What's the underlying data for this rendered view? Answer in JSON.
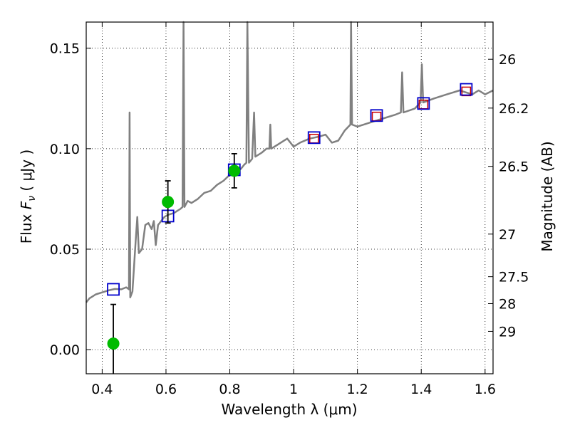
{
  "chart_data": {
    "type": "scatter",
    "xlabel": "Wavelength  λ (μm)",
    "ylabel": "Flux  F_ν  ( μJy )",
    "ylabel_parts": {
      "prefix": "Flux  ",
      "symbol": "F",
      "subscript": "ν",
      "suffix": "  ( μJy )"
    },
    "y2label": "Magnitude (AB)",
    "xlim": [
      0.35,
      1.625
    ],
    "ylim": [
      -0.012,
      0.163
    ],
    "grid": true,
    "x_ticks": [
      {
        "value": 0.4,
        "label": "0.4"
      },
      {
        "value": 0.6,
        "label": "0.6"
      },
      {
        "value": 0.8,
        "label": "0.8"
      },
      {
        "value": 1.0,
        "label": "1"
      },
      {
        "value": 1.2,
        "label": "1.2"
      },
      {
        "value": 1.4,
        "label": "1.4"
      },
      {
        "value": 1.6,
        "label": "1.6"
      }
    ],
    "y_ticks": [
      {
        "value": 0.0,
        "label": "0.00"
      },
      {
        "value": 0.05,
        "label": "0.05"
      },
      {
        "value": 0.1,
        "label": "0.10"
      },
      {
        "value": 0.15,
        "label": "0.15"
      }
    ],
    "y2_ticks": [
      {
        "label": "26",
        "flux": 0.1445
      },
      {
        "label": "26.2",
        "flux": 0.1202
      },
      {
        "label": "26.5",
        "flux": 0.0912
      },
      {
        "label": "27",
        "flux": 0.0575
      },
      {
        "label": "27.5",
        "flux": 0.0363
      },
      {
        "label": "28",
        "flux": 0.0229
      },
      {
        "label": "29",
        "flux": 0.0091
      }
    ],
    "model_spectrum": {
      "color": "#808080",
      "points": [
        [
          0.35,
          0.0235
        ],
        [
          0.355,
          0.0245
        ],
        [
          0.36,
          0.0255
        ],
        [
          0.37,
          0.0265
        ],
        [
          0.38,
          0.0275
        ],
        [
          0.4,
          0.0285
        ],
        [
          0.42,
          0.0295
        ],
        [
          0.44,
          0.0302
        ],
        [
          0.46,
          0.03
        ],
        [
          0.475,
          0.031
        ],
        [
          0.48,
          0.0305
        ],
        [
          0.484,
          0.03
        ],
        [
          0.486,
          0.118
        ],
        [
          0.488,
          0.026
        ],
        [
          0.495,
          0.029
        ],
        [
          0.505,
          0.054
        ],
        [
          0.51,
          0.066
        ],
        [
          0.515,
          0.048
        ],
        [
          0.525,
          0.05
        ],
        [
          0.535,
          0.062
        ],
        [
          0.545,
          0.063
        ],
        [
          0.555,
          0.06
        ],
        [
          0.562,
          0.064
        ],
        [
          0.568,
          0.052
        ],
        [
          0.575,
          0.062
        ],
        [
          0.585,
          0.064
        ],
        [
          0.595,
          0.066
        ],
        [
          0.605,
          0.067
        ],
        [
          0.615,
          0.0675
        ],
        [
          0.625,
          0.068
        ],
        [
          0.635,
          0.069
        ],
        [
          0.645,
          0.07
        ],
        [
          0.652,
          0.071
        ],
        [
          0.655,
          0.163
        ],
        [
          0.658,
          0.071
        ],
        [
          0.668,
          0.074
        ],
        [
          0.68,
          0.073
        ],
        [
          0.7,
          0.075
        ],
        [
          0.72,
          0.078
        ],
        [
          0.74,
          0.079
        ],
        [
          0.76,
          0.082
        ],
        [
          0.78,
          0.084
        ],
        [
          0.8,
          0.087
        ],
        [
          0.82,
          0.088
        ],
        [
          0.835,
          0.09
        ],
        [
          0.845,
          0.092
        ],
        [
          0.852,
          0.093
        ],
        [
          0.855,
          0.163
        ],
        [
          0.86,
          0.093
        ],
        [
          0.87,
          0.095
        ],
        [
          0.876,
          0.118
        ],
        [
          0.88,
          0.096
        ],
        [
          0.9,
          0.098
        ],
        [
          0.915,
          0.1
        ],
        [
          0.924,
          0.1
        ],
        [
          0.927,
          0.112
        ],
        [
          0.93,
          0.1
        ],
        [
          0.95,
          0.102
        ],
        [
          0.98,
          0.105
        ],
        [
          1.0,
          0.101
        ],
        [
          1.02,
          0.103
        ],
        [
          1.05,
          0.105
        ],
        [
          1.08,
          0.106
        ],
        [
          1.1,
          0.107
        ],
        [
          1.12,
          0.103
        ],
        [
          1.14,
          0.104
        ],
        [
          1.16,
          0.109
        ],
        [
          1.178,
          0.112
        ],
        [
          1.18,
          0.163
        ],
        [
          1.183,
          0.112
        ],
        [
          1.2,
          0.111
        ],
        [
          1.24,
          0.113
        ],
        [
          1.28,
          0.115
        ],
        [
          1.32,
          0.117
        ],
        [
          1.336,
          0.118
        ],
        [
          1.34,
          0.138
        ],
        [
          1.344,
          0.118
        ],
        [
          1.38,
          0.12
        ],
        [
          1.398,
          0.123
        ],
        [
          1.402,
          0.142
        ],
        [
          1.406,
          0.123
        ],
        [
          1.44,
          0.125
        ],
        [
          1.48,
          0.127
        ],
        [
          1.52,
          0.129
        ],
        [
          1.56,
          0.127
        ],
        [
          1.58,
          0.129
        ],
        [
          1.6,
          0.127
        ],
        [
          1.625,
          0.129
        ]
      ]
    },
    "model_photometry_blue": {
      "color": "#0000cc",
      "points": [
        [
          0.435,
          0.03
        ],
        [
          0.606,
          0.0665
        ],
        [
          0.814,
          0.0895
        ],
        [
          1.064,
          0.1055
        ],
        [
          1.26,
          0.1165
        ],
        [
          1.407,
          0.1225
        ],
        [
          1.541,
          0.1295
        ]
      ]
    },
    "model_photometry_red": {
      "color": "#cc0000",
      "points": [
        [
          1.064,
          0.105
        ],
        [
          1.26,
          0.116
        ],
        [
          1.407,
          0.122
        ],
        [
          1.541,
          0.1285
        ]
      ]
    },
    "observed_photometry": {
      "color": "#00bb00",
      "points": [
        {
          "x": 0.435,
          "y": 0.003,
          "yerr": 0.0195
        },
        {
          "x": 0.606,
          "y": 0.0735,
          "yerr": 0.0105
        },
        {
          "x": 0.814,
          "y": 0.089,
          "yerr": 0.0085
        }
      ]
    }
  }
}
